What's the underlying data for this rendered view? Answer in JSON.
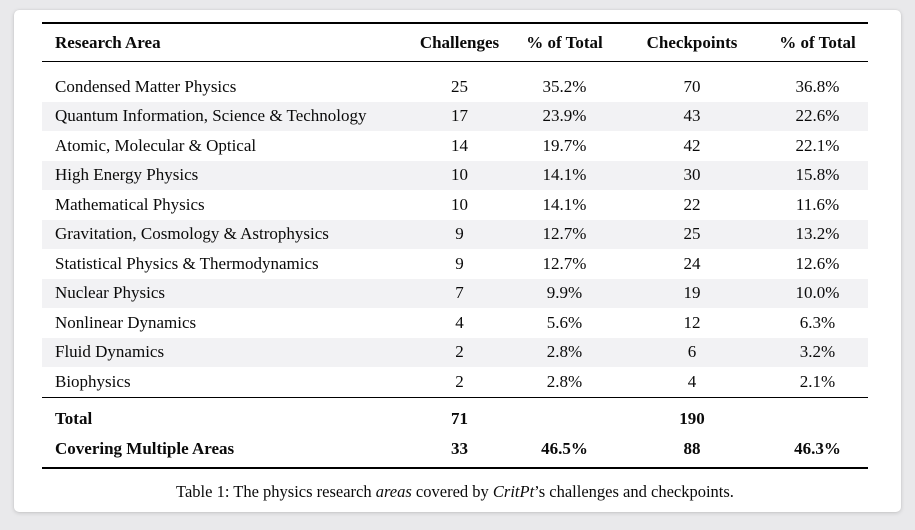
{
  "table": {
    "headers": {
      "area": "Research Area",
      "challenges": "Challenges",
      "challenges_pct": "% of Total",
      "checkpoints": "Checkpoints",
      "checkpoints_pct": "% of Total"
    },
    "rows": [
      {
        "area": "Condensed Matter Physics",
        "challenges": "25",
        "challenges_pct": "35.2%",
        "checkpoints": "70",
        "checkpoints_pct": "36.8%"
      },
      {
        "area": "Quantum Information, Science & Technology",
        "challenges": "17",
        "challenges_pct": "23.9%",
        "checkpoints": "43",
        "checkpoints_pct": "22.6%"
      },
      {
        "area": "Atomic, Molecular & Optical",
        "challenges": "14",
        "challenges_pct": "19.7%",
        "checkpoints": "42",
        "checkpoints_pct": "22.1%"
      },
      {
        "area": "High Energy Physics",
        "challenges": "10",
        "challenges_pct": "14.1%",
        "checkpoints": "30",
        "checkpoints_pct": "15.8%"
      },
      {
        "area": "Mathematical Physics",
        "challenges": "10",
        "challenges_pct": "14.1%",
        "checkpoints": "22",
        "checkpoints_pct": "11.6%"
      },
      {
        "area": "Gravitation, Cosmology & Astrophysics",
        "challenges": "9",
        "challenges_pct": "12.7%",
        "checkpoints": "25",
        "checkpoints_pct": "13.2%"
      },
      {
        "area": "Statistical Physics & Thermodynamics",
        "challenges": "9",
        "challenges_pct": "12.7%",
        "checkpoints": "24",
        "checkpoints_pct": "12.6%"
      },
      {
        "area": "Nuclear Physics",
        "challenges": "7",
        "challenges_pct": "9.9%",
        "checkpoints": "19",
        "checkpoints_pct": "10.0%"
      },
      {
        "area": "Nonlinear Dynamics",
        "challenges": "4",
        "challenges_pct": "5.6%",
        "checkpoints": "12",
        "checkpoints_pct": "6.3%"
      },
      {
        "area": "Fluid Dynamics",
        "challenges": "2",
        "challenges_pct": "2.8%",
        "checkpoints": "6",
        "checkpoints_pct": "3.2%"
      },
      {
        "area": "Biophysics",
        "challenges": "2",
        "challenges_pct": "2.8%",
        "checkpoints": "4",
        "checkpoints_pct": "2.1%"
      }
    ],
    "footer_rows": [
      {
        "area": "Total",
        "challenges": "71",
        "challenges_pct": "",
        "checkpoints": "190",
        "checkpoints_pct": ""
      },
      {
        "area": "Covering Multiple Areas",
        "challenges": "33",
        "challenges_pct": "46.5%",
        "checkpoints": "88",
        "checkpoints_pct": "46.3%"
      }
    ],
    "caption": {
      "prefix": "Table 1: The physics research ",
      "italic_1": "areas",
      "middle": " covered by ",
      "italic_2": "CritPt",
      "suffix": "’s challenges and checkpoints."
    }
  },
  "colors": {
    "page_bg": "#e9e9eb",
    "card_bg": "#ffffff",
    "stripe": "#f2f2f4",
    "rule": "#000000",
    "text": "#0a0a0a"
  }
}
